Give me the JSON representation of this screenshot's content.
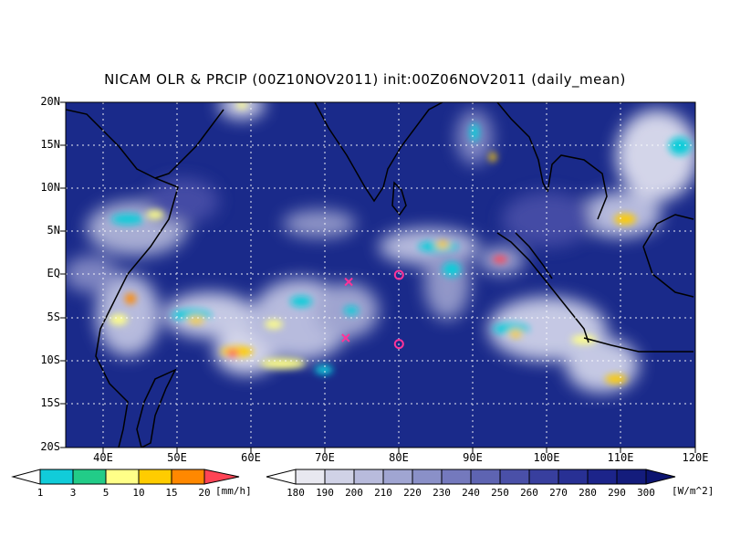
{
  "title": "NICAM OLR & PRCIP (00Z10NOV2011) init:00Z06NOV2011 (daily_mean)",
  "map": {
    "lon_range": [
      35,
      120
    ],
    "lat_range": [
      -20,
      20
    ],
    "lat_ticks": [
      "20N",
      "15N",
      "10N",
      "5N",
      "EQ",
      "5S",
      "10S",
      "15S",
      "20S"
    ],
    "lon_ticks": [
      "40E",
      "50E",
      "60E",
      "70E",
      "80E",
      "90E",
      "100E",
      "110E",
      "120E"
    ],
    "grid": true,
    "background_color": "#1a2a8a",
    "markers": [
      {
        "type": "x",
        "lon": 73.2,
        "lat": -0.8,
        "color": "#ff3399"
      },
      {
        "type": "x",
        "lon": 72.8,
        "lat": -7.3,
        "color": "#ff3399"
      },
      {
        "type": "o",
        "lon": 80,
        "lat": 0,
        "color": "#ff3399"
      },
      {
        "type": "o",
        "lon": 80,
        "lat": -8,
        "color": "#ff3399"
      }
    ]
  },
  "precip_colorbar": {
    "labels": [
      "1",
      "3",
      "5",
      "10",
      "15",
      "20"
    ],
    "unit": "[mm/h]",
    "colors": [
      "#ffffff",
      "#11ccd9",
      "#22cc88",
      "#ffff88",
      "#ffcc00",
      "#ff8800",
      "#ff4455"
    ]
  },
  "olr_colorbar": {
    "labels": [
      "180",
      "190",
      "200",
      "210",
      "220",
      "230",
      "240",
      "250",
      "260",
      "270",
      "280",
      "290",
      "300"
    ],
    "unit": "[W/m^2]",
    "colors": [
      "#ffffff",
      "#e8e8f0",
      "#d0d2e6",
      "#b8bbdc",
      "#a0a5d2",
      "#8a90c8",
      "#7479bd",
      "#5e64b2",
      "#4a50a8",
      "#383f9e",
      "#283094",
      "#1c248a",
      "#141c7c",
      "#0c1470"
    ]
  }
}
